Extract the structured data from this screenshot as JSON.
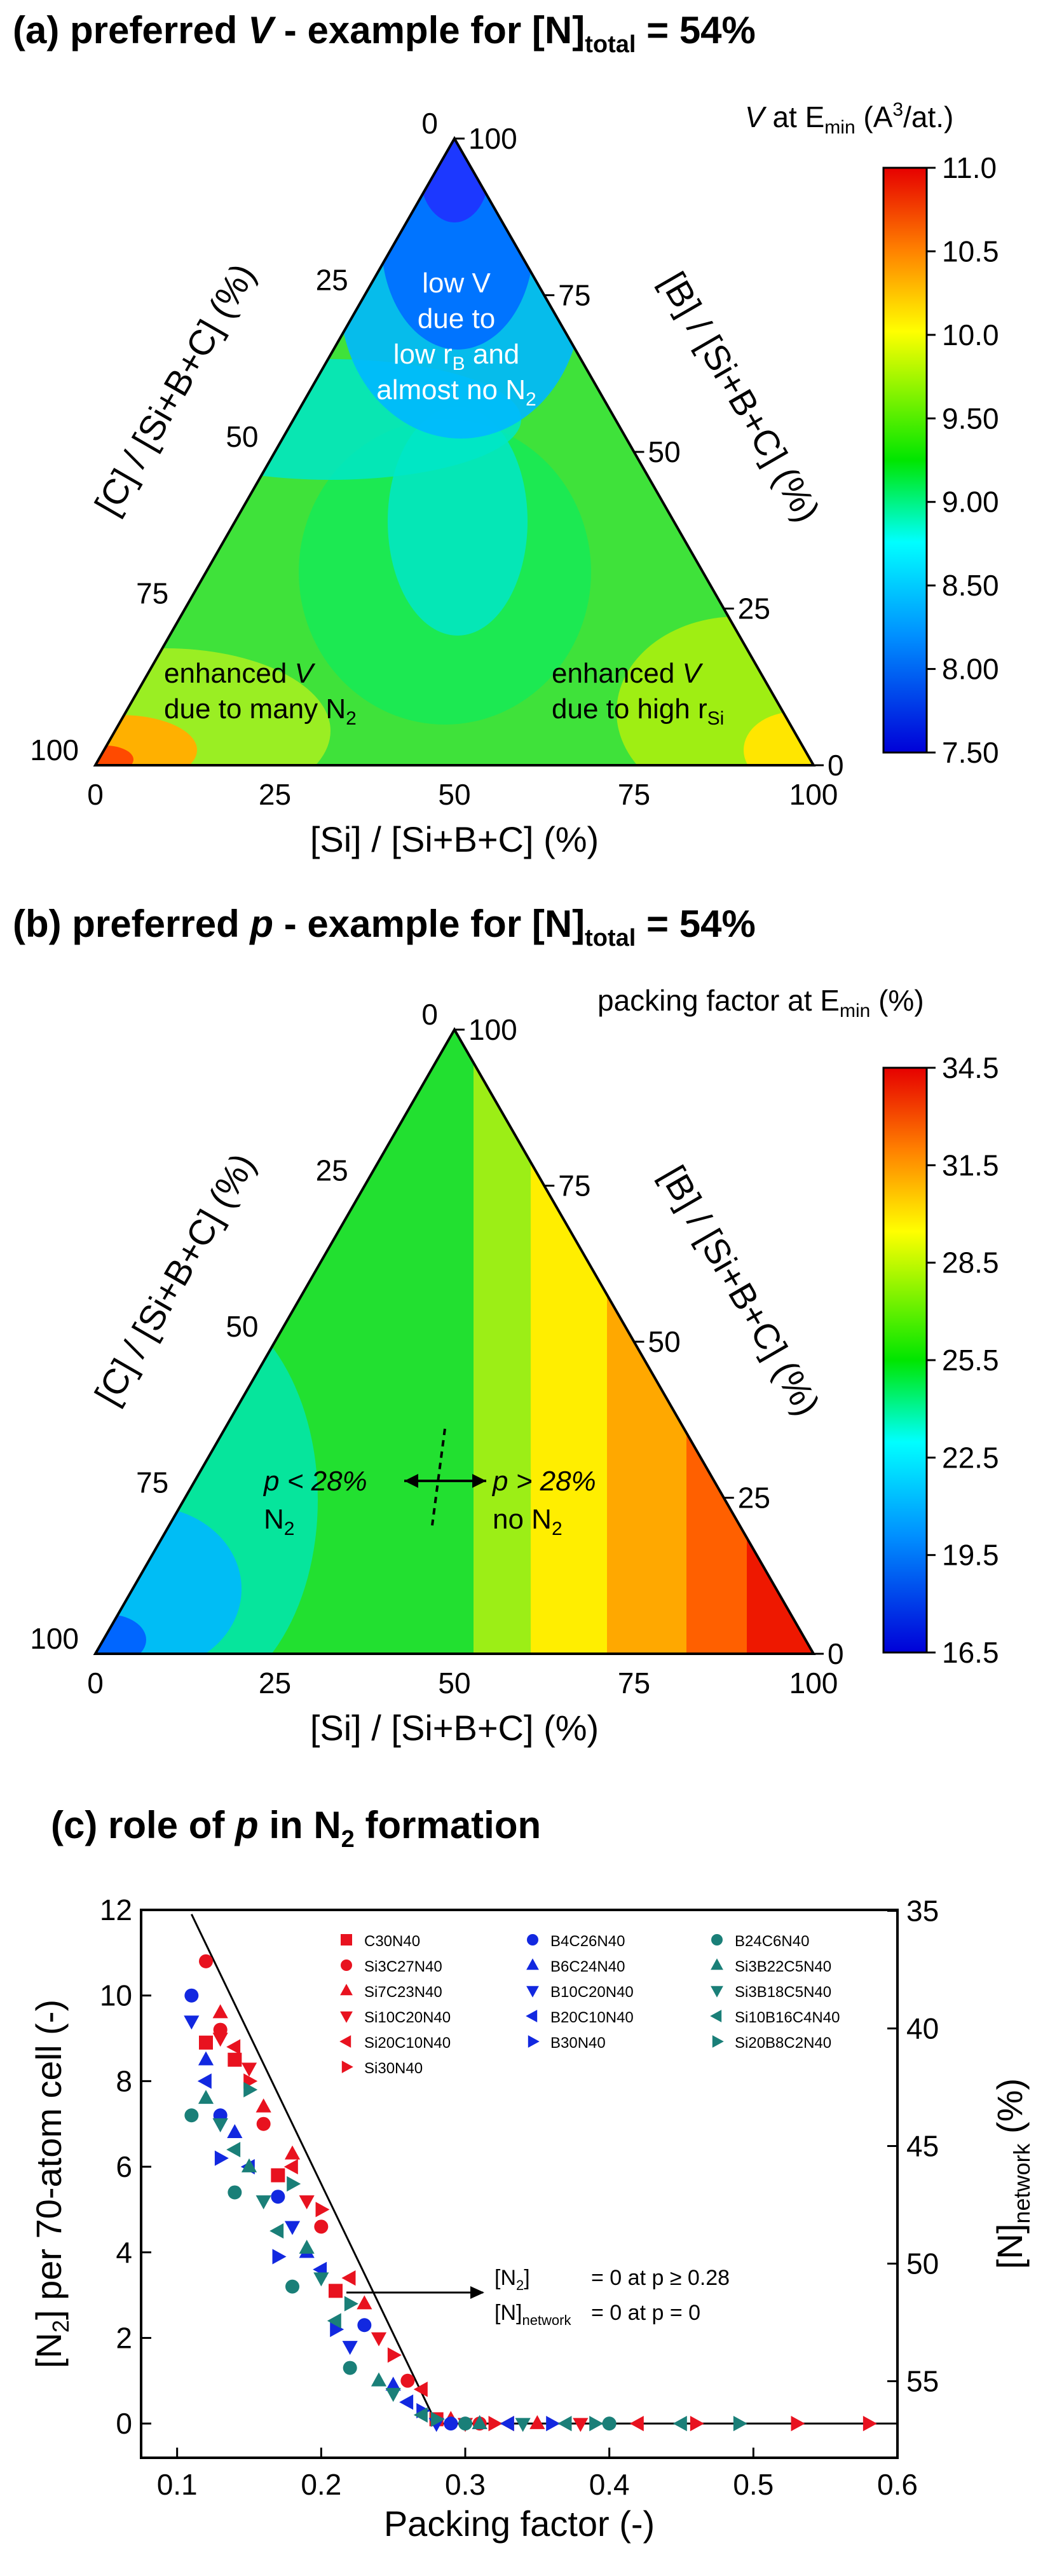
{
  "panels": {
    "a": {
      "title_lead": "(a) preferred ",
      "title_var": "V",
      "title_mid": " - example for [N]",
      "title_sub": "total",
      "title_end": " = 54%",
      "cbar_var": "V",
      "cbar_mid": " at E",
      "cbar_sub": "min",
      "cbar_unit_a": " (A",
      "cbar_sup": "3",
      "cbar_unit_b": "/at.)",
      "xlabel": "[Si] / [Si+B+C] (%)",
      "left_label": "[C] / [Si+B+C] (%)",
      "right_label": "[B] / [Si+B+C] (%)",
      "note_low": {
        "l1": "low V",
        "l2": "due to",
        "l3a": "low r",
        "l3sub": "B",
        "l3b": " and",
        "l4a": "almost no N",
        "l4sub": "2"
      },
      "note_left": {
        "l1a": "enhanced ",
        "l1v": "V",
        "l2a": "due to many N",
        "l2sub": "2"
      },
      "note_right": {
        "l1a": "enhanced ",
        "l1v": "V",
        "l2a": "due to high r",
        "l2sub": "Si"
      }
    },
    "b": {
      "title_lead": "(b) preferred ",
      "title_var": "p",
      "title_mid": " - example for [N]",
      "title_sub": "total",
      "title_end": " = 54%",
      "cbar_a": "packing factor at E",
      "cbar_sub": "min",
      "cbar_b": " (%)",
      "xlabel": "[Si] / [Si+B+C] (%)",
      "left_label": "[C] / [Si+B+C] (%)",
      "right_label": "[B] / [Si+B+C] (%)",
      "note_left": {
        "l1": "p < 28%",
        "l2a": "N",
        "l2sub": "2"
      },
      "note_right": {
        "l1": "p > 28%",
        "l2a": "no N",
        "l2sub": "2"
      }
    },
    "c": {
      "title_lead": "(c) role of ",
      "title_var": "p",
      "title_mid": " in N",
      "title_sub": "2",
      "title_end": " formation",
      "ann1a": "[N",
      "ann1sub": "2",
      "ann1b": "]",
      "ann1c": "= 0 at p ≥ 0.28",
      "ann2a": "[N]",
      "ann2sub": "network",
      "ann2c": "= 0 at p = 0"
    }
  },
  "chart_data": [
    {
      "type": "heatmap",
      "title": "(a) preferred V - example for [N]total = 54%",
      "ternary_axes": [
        "[Si] / [Si+B+C] (%)",
        "[B] / [Si+B+C] (%)",
        "[C] / [Si+B+C] (%)"
      ],
      "tick_labels": [
        "0",
        "25",
        "50",
        "75",
        "100"
      ],
      "colorbar": {
        "label": "V at Emin (A3/at.)",
        "ticks": [
          "11.0",
          "10.5",
          "10.0",
          "9.50",
          "9.00",
          "8.50",
          "8.00",
          "7.50"
        ],
        "range": [
          7.5,
          11.0
        ]
      },
      "anchor_values": [
        {
          "Si": 0,
          "B": 0,
          "C": 100,
          "value": 10.9
        },
        {
          "Si": 100,
          "B": 0,
          "C": 0,
          "value": 9.9
        },
        {
          "Si": 0,
          "B": 100,
          "C": 0,
          "value": 7.6
        },
        {
          "Si": 30,
          "B": 0,
          "C": 70,
          "value": 9.3
        },
        {
          "Si": 50,
          "B": 0,
          "C": 50,
          "value": 9.1
        },
        {
          "Si": 75,
          "B": 0,
          "C": 25,
          "value": 9.3
        },
        {
          "Si": 50,
          "B": 50,
          "C": 0,
          "value": 8.8
        },
        {
          "Si": 0,
          "B": 50,
          "C": 50,
          "value": 8.9
        },
        {
          "Si": 33,
          "B": 33,
          "C": 33,
          "value": 8.8
        },
        {
          "Si": 20,
          "B": 20,
          "C": 60,
          "value": 9.2
        },
        {
          "Si": 60,
          "B": 20,
          "C": 20,
          "value": 9.2
        },
        {
          "Si": 15,
          "B": 70,
          "C": 15,
          "value": 8.0
        }
      ]
    },
    {
      "type": "heatmap",
      "title": "(b) preferred p - example for [N]total = 54%",
      "ternary_axes": [
        "[Si] / [Si+B+C] (%)",
        "[B] / [Si+B+C] (%)",
        "[C] / [Si+B+C] (%)"
      ],
      "tick_labels": [
        "0",
        "25",
        "50",
        "75",
        "100"
      ],
      "colorbar": {
        "label": "packing factor at Emin (%)",
        "ticks": [
          "34.5",
          "31.5",
          "28.5",
          "25.5",
          "22.5",
          "19.5",
          "16.5"
        ],
        "range": [
          16.5,
          34.5
        ]
      },
      "anchor_values": [
        {
          "Si": 0,
          "B": 0,
          "C": 100,
          "value": 19.5
        },
        {
          "Si": 100,
          "B": 0,
          "C": 0,
          "value": 34.0
        },
        {
          "Si": 0,
          "B": 100,
          "C": 0,
          "value": 25.5
        },
        {
          "Si": 25,
          "B": 0,
          "C": 75,
          "value": 23.5
        },
        {
          "Si": 50,
          "B": 0,
          "C": 50,
          "value": 27.0
        },
        {
          "Si": 75,
          "B": 0,
          "C": 25,
          "value": 31.0
        },
        {
          "Si": 50,
          "B": 50,
          "C": 0,
          "value": 29.0
        },
        {
          "Si": 0,
          "B": 50,
          "C": 50,
          "value": 23.0
        },
        {
          "Si": 33,
          "B": 33,
          "C": 33,
          "value": 26.0
        },
        {
          "Si": 65,
          "B": 25,
          "C": 10,
          "value": 31.5
        }
      ]
    },
    {
      "type": "scatter",
      "title": "(c) role of p in N2 formation",
      "xlabel": "Packing factor (-)",
      "ylabel": "[N2] per 70-atom cell (-)",
      "y2label": "[N]network (%)",
      "xlim": [
        0.075,
        0.6
      ],
      "ylim": [
        -0.8,
        12
      ],
      "xticks": [
        0.1,
        0.2,
        0.3,
        0.4,
        0.5,
        0.6
      ],
      "yticks": [
        0,
        2,
        4,
        6,
        8,
        10,
        12
      ],
      "y2ticks": [
        35,
        40,
        45,
        50,
        55
      ],
      "fit_line": {
        "x": [
          0.11,
          0.28,
          0.6
        ],
        "y": [
          11.9,
          0,
          0
        ]
      },
      "series": [
        {
          "name": "C30N40",
          "color": "#e8121f",
          "marker": "square",
          "x": [
            0.12,
            0.14,
            0.17,
            0.21,
            0.28
          ],
          "y": [
            8.9,
            8.5,
            5.8,
            3.1,
            0.1
          ]
        },
        {
          "name": "Si3C27N40",
          "color": "#e8121f",
          "marker": "circle",
          "x": [
            0.12,
            0.13,
            0.16,
            0.2,
            0.26,
            0.31
          ],
          "y": [
            10.8,
            9.2,
            7.0,
            4.6,
            1.0,
            0
          ]
        },
        {
          "name": "Si7C23N40",
          "color": "#e8121f",
          "marker": "triangle-up",
          "x": [
            0.13,
            0.16,
            0.18,
            0.23,
            0.29,
            0.35
          ],
          "y": [
            9.6,
            7.4,
            6.3,
            2.8,
            0.1,
            0
          ]
        },
        {
          "name": "Si10C20N40",
          "color": "#e8121f",
          "marker": "triangle-down",
          "x": [
            0.13,
            0.15,
            0.19,
            0.24,
            0.3,
            0.38
          ],
          "y": [
            9.0,
            8.3,
            5.2,
            2.0,
            0,
            0
          ]
        },
        {
          "name": "Si20C10N40",
          "color": "#e8121f",
          "marker": "triangle-left",
          "x": [
            0.14,
            0.18,
            0.22,
            0.27,
            0.33,
            0.42
          ],
          "y": [
            8.8,
            6.0,
            3.4,
            0.8,
            0,
            0
          ]
        },
        {
          "name": "Si30N40",
          "color": "#e8121f",
          "marker": "triangle-right",
          "x": [
            0.15,
            0.2,
            0.25,
            0.32,
            0.46,
            0.53,
            0.58
          ],
          "y": [
            8.0,
            5.0,
            1.6,
            0,
            0,
            0,
            0
          ]
        },
        {
          "name": "B4C26N40",
          "color": "#1228e0",
          "marker": "circle",
          "x": [
            0.11,
            0.13,
            0.17,
            0.23,
            0.29
          ],
          "y": [
            10.0,
            7.2,
            5.3,
            2.3,
            0
          ]
        },
        {
          "name": "B6C24N40",
          "color": "#1228e0",
          "marker": "triangle-up",
          "x": [
            0.12,
            0.14,
            0.19,
            0.25,
            0.31
          ],
          "y": [
            8.5,
            6.8,
            4.0,
            0.9,
            0
          ]
        },
        {
          "name": "B10C20N40",
          "color": "#1228e0",
          "marker": "triangle-down",
          "x": [
            0.11,
            0.13,
            0.18,
            0.22,
            0.28
          ],
          "y": [
            9.4,
            7.0,
            4.6,
            1.8,
            0
          ]
        },
        {
          "name": "B20C10N40",
          "color": "#1228e0",
          "marker": "triangle-left",
          "x": [
            0.12,
            0.15,
            0.2,
            0.26,
            0.33
          ],
          "y": [
            8.0,
            6.0,
            3.6,
            0.5,
            0
          ]
        },
        {
          "name": "B30N40",
          "color": "#1228e0",
          "marker": "triangle-right",
          "x": [
            0.13,
            0.17,
            0.21,
            0.27,
            0.36
          ],
          "y": [
            6.2,
            3.9,
            2.2,
            0.3,
            0
          ]
        },
        {
          "name": "B24C6N40",
          "color": "#1a7f78",
          "marker": "circle",
          "x": [
            0.11,
            0.14,
            0.18,
            0.22,
            0.3,
            0.4
          ],
          "y": [
            7.2,
            5.4,
            3.2,
            1.3,
            0,
            0
          ]
        },
        {
          "name": "Si3B22C5N40",
          "color": "#1a7f78",
          "marker": "triangle-up",
          "x": [
            0.12,
            0.15,
            0.19,
            0.24,
            0.31
          ],
          "y": [
            7.6,
            6.0,
            4.1,
            1.0,
            0
          ]
        },
        {
          "name": "Si3B18C5N40",
          "color": "#1a7f78",
          "marker": "triangle-down",
          "x": [
            0.13,
            0.16,
            0.2,
            0.25,
            0.34
          ],
          "y": [
            7.0,
            5.2,
            3.4,
            0.7,
            0
          ]
        },
        {
          "name": "Si10B16C4N40",
          "color": "#1a7f78",
          "marker": "triangle-left",
          "x": [
            0.14,
            0.17,
            0.21,
            0.27,
            0.37,
            0.45
          ],
          "y": [
            6.4,
            4.5,
            2.4,
            0.2,
            0,
            0
          ]
        },
        {
          "name": "Si20B8C2N40",
          "color": "#1a7f78",
          "marker": "triangle-right",
          "x": [
            0.15,
            0.18,
            0.22,
            0.28,
            0.39,
            0.49
          ],
          "y": [
            7.8,
            5.6,
            2.8,
            0.1,
            0,
            0
          ]
        }
      ]
    }
  ]
}
